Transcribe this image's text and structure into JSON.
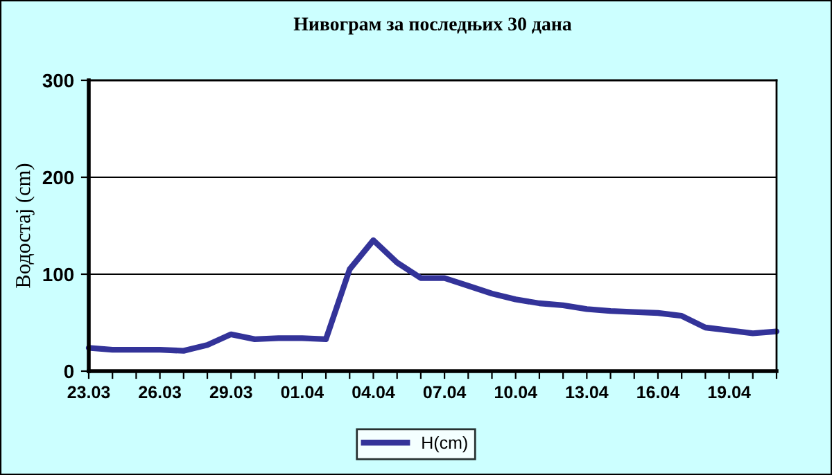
{
  "chart_data": {
    "type": "line",
    "title": "Нивограм за последњих 30 дана",
    "ylabel": "Водостај (cm)",
    "categories": [
      "23.03",
      null,
      null,
      "26.03",
      null,
      null,
      "29.03",
      null,
      null,
      "01.04",
      null,
      null,
      "04.04",
      null,
      null,
      "07.04",
      null,
      null,
      "10.04",
      null,
      null,
      "13.04",
      null,
      null,
      "16.04",
      null,
      null,
      "19.04",
      null,
      null
    ],
    "series": [
      {
        "name": "H(cm)",
        "color": "#333399",
        "values": [
          24,
          22,
          22,
          22,
          21,
          27,
          38,
          33,
          34,
          34,
          33,
          105,
          135,
          112,
          96,
          96,
          88,
          80,
          74,
          70,
          68,
          64,
          62,
          61,
          60,
          57,
          45,
          42,
          39,
          41
        ]
      }
    ],
    "ylim": [
      0,
      300
    ],
    "yticks": [
      0,
      100,
      200,
      300
    ],
    "grid": "y",
    "legend": "bottom",
    "marker": "none",
    "line_style": "solid"
  }
}
